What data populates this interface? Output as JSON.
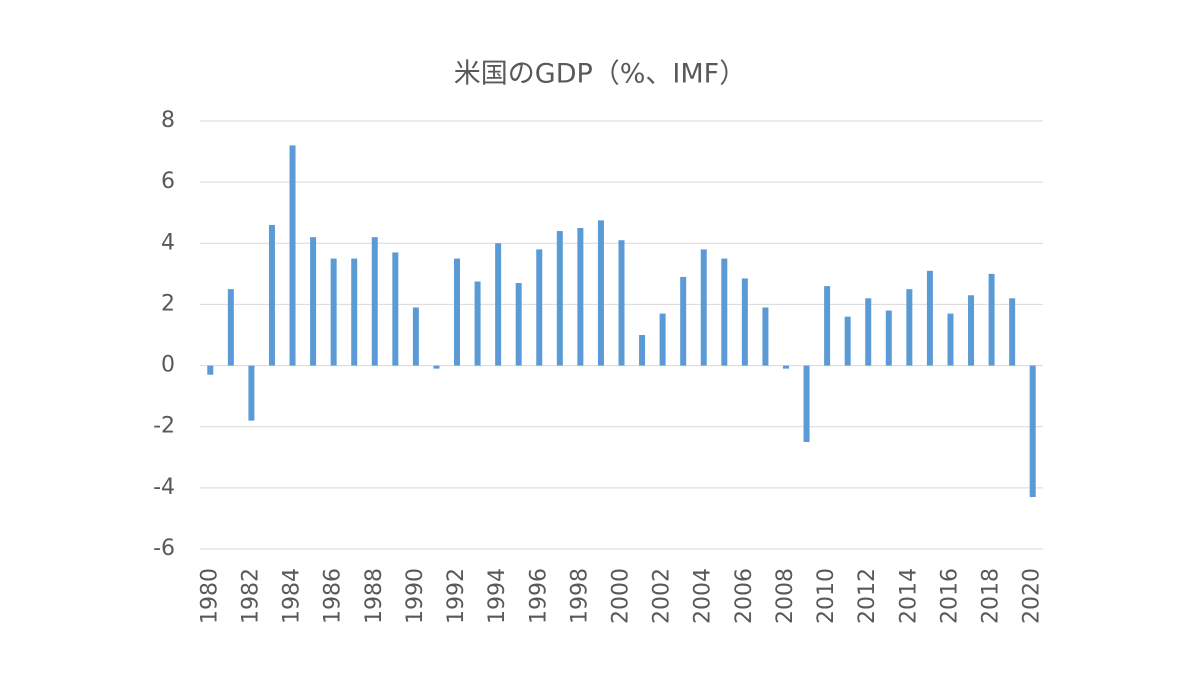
{
  "chart_data": {
    "type": "bar",
    "title": "米国のGDP（%、IMF）",
    "categories": [
      "1980",
      null,
      "1982",
      null,
      "1984",
      null,
      "1986",
      null,
      "1988",
      null,
      "1990",
      null,
      "1992",
      null,
      "1994",
      null,
      "1996",
      null,
      "1998",
      null,
      "2000",
      null,
      "2002",
      null,
      "2004",
      null,
      "2006",
      null,
      "2008",
      null,
      "2010",
      null,
      "2012",
      null,
      "2014",
      null,
      "2016",
      null,
      "2018",
      null,
      "2020"
    ],
    "values": [
      -0.3,
      2.5,
      -1.8,
      4.6,
      7.2,
      4.2,
      3.5,
      3.5,
      4.2,
      3.7,
      1.9,
      -0.1,
      3.5,
      2.75,
      4.0,
      2.7,
      3.8,
      4.4,
      4.5,
      4.75,
      4.1,
      1.0,
      1.7,
      2.9,
      3.8,
      3.5,
      2.85,
      1.9,
      -0.1,
      -2.5,
      2.6,
      1.6,
      2.2,
      1.8,
      2.5,
      3.1,
      1.7,
      2.3,
      3.0,
      2.2,
      -4.3
    ],
    "color": "#5b9bd5",
    "ylim": [
      -6,
      8
    ],
    "yticks": [
      -6,
      -4,
      -2,
      0,
      2,
      4,
      6,
      8
    ],
    "grid": true
  }
}
